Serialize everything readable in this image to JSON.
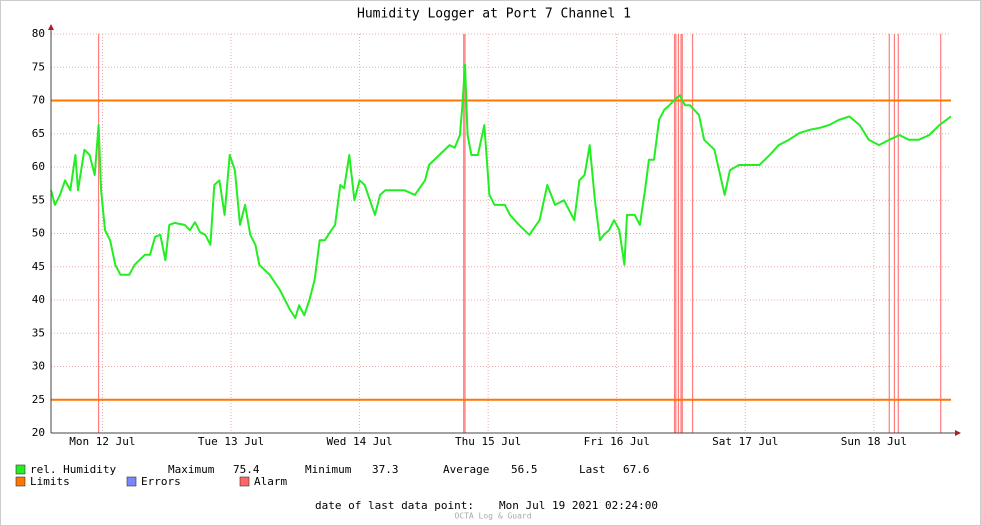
{
  "chart_data": {
    "type": "line",
    "title": "Humidity Logger at Port 7 Channel 1",
    "x": [
      12.1,
      12.13,
      12.17,
      12.21,
      12.25,
      12.29,
      12.31,
      12.36,
      12.4,
      12.44,
      12.47,
      12.49,
      12.52,
      12.56,
      12.6,
      12.64,
      12.71,
      12.75,
      12.83,
      12.87,
      12.91,
      12.95,
      12.99,
      13.02,
      13.06,
      13.14,
      13.18,
      13.22,
      13.26,
      13.3,
      13.34,
      13.37,
      13.41,
      13.45,
      13.49,
      13.53,
      13.57,
      13.61,
      13.65,
      13.69,
      13.72,
      13.8,
      13.88,
      13.96,
      14.0,
      14.03,
      14.07,
      14.11,
      14.15,
      14.19,
      14.23,
      14.27,
      14.31,
      14.35,
      14.38,
      14.42,
      14.46,
      14.5,
      14.54,
      14.58,
      14.62,
      14.66,
      14.7,
      14.77,
      14.85,
      14.93,
      15.01,
      15.04,
      15.12,
      15.2,
      15.24,
      15.28,
      15.3,
      15.32,
      15.34,
      15.37,
      15.42,
      15.47,
      15.51,
      15.55,
      15.63,
      15.67,
      15.74,
      15.82,
      15.9,
      15.96,
      16.02,
      16.09,
      16.17,
      16.21,
      16.25,
      16.29,
      16.33,
      16.37,
      16.4,
      16.44,
      16.48,
      16.52,
      16.56,
      16.58,
      16.64,
      16.68,
      16.72,
      16.75,
      16.79,
      16.83,
      16.87,
      16.91,
      16.95,
      16.99,
      17.03,
      17.07,
      17.14,
      17.18,
      17.26,
      17.34,
      17.38,
      17.45,
      17.53,
      17.61,
      17.69,
      17.76,
      17.84,
      17.92,
      18.0,
      18.08,
      18.15,
      18.23,
      18.31,
      18.39,
      18.46,
      18.54,
      18.62,
      18.7,
      18.77,
      18.85,
      18.93,
      19.01,
      19.1
    ],
    "xlim": [
      12.1,
      19.1
    ],
    "xticks": [
      {
        "value": 12.5,
        "label": "Mon 12 Jul"
      },
      {
        "value": 13.5,
        "label": "Tue 13 Jul"
      },
      {
        "value": 14.5,
        "label": "Wed 14 Jul"
      },
      {
        "value": 15.5,
        "label": "Thu 15 Jul"
      },
      {
        "value": 16.5,
        "label": "Fri 16 Jul"
      },
      {
        "value": 17.5,
        "label": "Sat 17 Jul"
      },
      {
        "value": 18.5,
        "label": "Sun 18 Jul"
      }
    ],
    "ylim": [
      20,
      80
    ],
    "yticks": [
      20,
      25,
      30,
      35,
      40,
      45,
      50,
      55,
      60,
      65,
      70,
      75,
      80
    ],
    "grid": true,
    "series": [
      {
        "name": "rel. Humidity",
        "color": "#22ee22",
        "values": [
          56.5,
          54.3,
          55.8,
          58.0,
          56.5,
          61.8,
          56.5,
          62.6,
          61.8,
          58.8,
          66.3,
          56.5,
          50.5,
          49.0,
          45.3,
          43.8,
          43.8,
          45.3,
          46.8,
          46.8,
          49.5,
          49.8,
          46.0,
          51.3,
          51.6,
          51.3,
          50.5,
          51.7,
          50.2,
          49.8,
          48.3,
          57.3,
          58.0,
          52.8,
          61.8,
          59.5,
          51.3,
          54.3,
          49.8,
          48.3,
          45.3,
          43.8,
          41.5,
          38.5,
          37.3,
          39.2,
          37.7,
          40.0,
          43.0,
          49.0,
          49.0,
          50.2,
          51.3,
          57.3,
          56.8,
          61.8,
          55.0,
          58.0,
          57.3,
          55.0,
          52.8,
          55.8,
          56.5,
          56.5,
          56.5,
          55.8,
          58.0,
          60.3,
          61.8,
          63.3,
          62.9,
          64.8,
          69.3,
          75.4,
          64.8,
          61.8,
          61.8,
          66.3,
          55.8,
          54.3,
          54.3,
          52.8,
          51.3,
          49.8,
          52.0,
          57.3,
          54.3,
          55.0,
          52.0,
          58.0,
          58.8,
          63.3,
          55.0,
          49.0,
          49.8,
          50.5,
          52.0,
          50.5,
          45.3,
          52.8,
          52.8,
          51.3,
          56.5,
          61.1,
          61.1,
          67.1,
          68.6,
          69.3,
          70.1,
          70.8,
          69.3,
          69.3,
          67.8,
          64.1,
          62.6,
          55.8,
          59.5,
          60.3,
          60.3,
          60.3,
          61.8,
          63.3,
          64.1,
          65.1,
          65.6,
          65.9,
          66.3,
          67.1,
          67.6,
          66.3,
          64.1,
          63.3,
          64.1,
          64.8,
          64.1,
          64.1,
          64.8,
          66.3,
          67.6
        ]
      }
    ],
    "limits": {
      "name": "Limits",
      "color": "#ff7700",
      "values": [
        25,
        70
      ]
    },
    "errors": {
      "name": "Errors",
      "color": "#7788ff"
    },
    "alarms": {
      "name": "Alarm",
      "color": "#ff6666",
      "x": [
        12.47,
        15.31,
        15.32,
        16.95,
        16.96,
        16.98,
        17.0,
        17.01,
        17.09,
        18.62,
        18.66,
        18.69,
        19.02
      ]
    },
    "stats": [
      {
        "label": "Maximum",
        "value": 75.4
      },
      {
        "label": "Minimum",
        "value": 37.3
      },
      {
        "label": "Average",
        "value": 56.5
      },
      {
        "label": "Last",
        "value": 67.6
      }
    ],
    "footer": {
      "label": "date of last data point:",
      "value": "Mon Jul 19 2021 02:24:00"
    },
    "watermark": "OCTA Log & Guard"
  }
}
